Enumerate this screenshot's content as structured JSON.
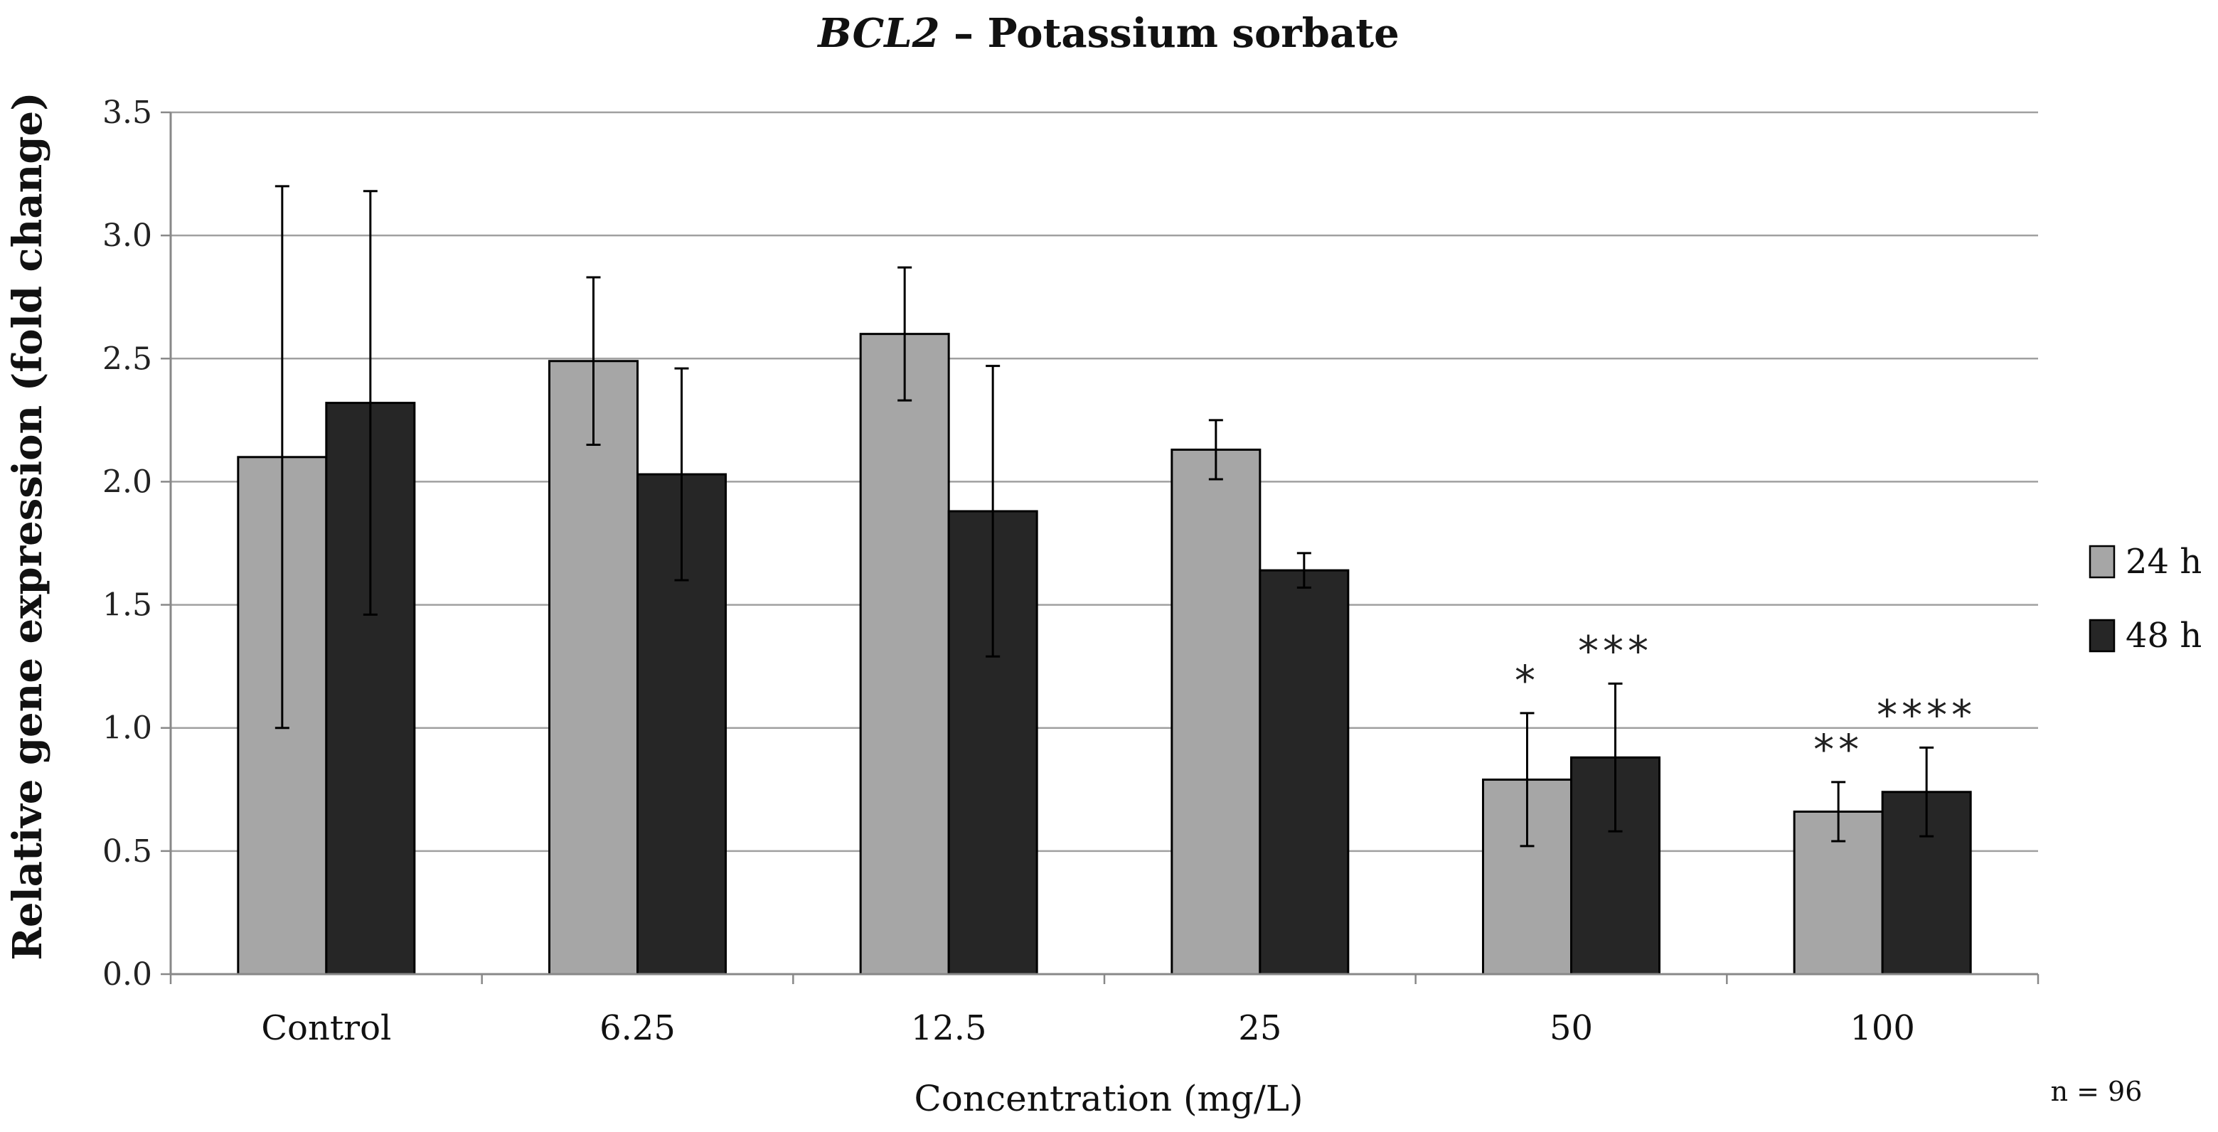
{
  "chart_data": {
    "type": "bar",
    "title_italic": "BCL2",
    "title_rest": " – Potassium sorbate",
    "xlabel": "Concentration (mg/L)",
    "ylabel": "Relative gene expression (fold change)",
    "ylim": [
      0,
      3.5
    ],
    "yticks": [
      "0.0",
      "0.5",
      "1.0",
      "1.5",
      "2.0",
      "2.5",
      "3.0",
      "3.5"
    ],
    "grid": true,
    "legend_position": "right",
    "categories": [
      "Control",
      "6.25",
      "12.5",
      "25",
      "50",
      "100"
    ],
    "series": [
      {
        "name": "24 h",
        "color": "#a6a6a6",
        "values": [
          2.1,
          2.49,
          2.6,
          2.13,
          0.79,
          0.66
        ],
        "error": [
          1.1,
          0.34,
          0.27,
          0.12,
          0.27,
          0.12
        ],
        "significance": [
          "",
          "",
          "",
          "",
          "*",
          "**"
        ]
      },
      {
        "name": "48 h",
        "color": "#262626",
        "values": [
          2.32,
          2.03,
          1.88,
          1.64,
          0.88,
          0.74
        ],
        "error": [
          0.86,
          0.43,
          0.59,
          0.07,
          0.3,
          0.18
        ],
        "significance": [
          "",
          "",
          "",
          "",
          "***",
          "****"
        ]
      }
    ],
    "note": "n = 96"
  }
}
